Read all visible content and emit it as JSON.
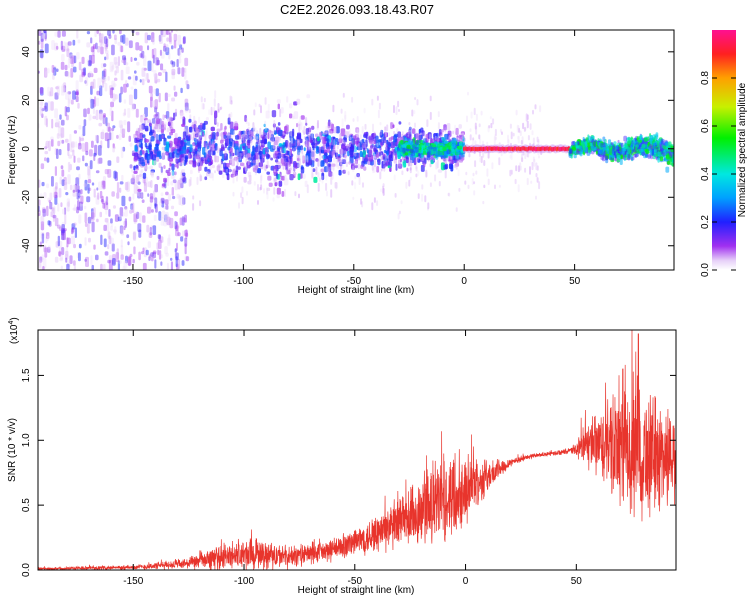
{
  "title": "C2E2.2026.093.18.43.R07",
  "chart_data": [
    {
      "type": "heatmap",
      "name": "spectrogram",
      "xlabel": "Height of straight line (km)",
      "ylabel": "Frequency (Hz)",
      "xlim": [
        -193,
        95
      ],
      "ylim": [
        -50,
        49
      ],
      "xticks": [
        -150,
        -100,
        -50,
        0,
        50
      ],
      "yticks": [
        -40,
        -20,
        0,
        20,
        40
      ],
      "colorbar": {
        "label": "Normalized spectral amplitude",
        "range": [
          0,
          1
        ],
        "ticks": [
          0.0,
          0.2,
          0.4,
          0.6,
          0.8
        ]
      },
      "description_bands": [
        {
          "x_range": [
            -193,
            -125
          ],
          "freq_spread": 49,
          "amplitude": [
            0.02,
            0.15
          ]
        },
        {
          "x_range": [
            -150,
            0
          ],
          "freq_spread": 20,
          "amplitude": [
            0.1,
            0.35
          ]
        },
        {
          "x_range": [
            0,
            48
          ],
          "freq_center": 0,
          "freq_spread": 1.5,
          "amplitude": [
            0.9,
            1.0
          ]
        },
        {
          "x_range": [
            48,
            95
          ],
          "freq_spread": 8,
          "amplitude": [
            0.25,
            0.6
          ]
        }
      ]
    },
    {
      "type": "line",
      "name": "snr",
      "xlabel": "Height of straight line (km)",
      "ylabel": "SNR (10 * v/v)",
      "yscale_label": "(x10",
      "yscale_exp": "4",
      "yscale_close": ")",
      "xlim": [
        -193,
        95
      ],
      "ylim": [
        0,
        1.85
      ],
      "xticks": [
        -150,
        -100,
        -50,
        0,
        50
      ],
      "yticks": [
        0.0,
        0.5,
        1.0,
        1.5
      ],
      "ytick_labels": [
        "0.0",
        "0.5",
        "1.0",
        "1.5"
      ],
      "color": "#e8342c",
      "envelope": [
        {
          "x": -193,
          "mean": 0.01,
          "amp": 0.01
        },
        {
          "x": -150,
          "mean": 0.02,
          "amp": 0.02
        },
        {
          "x": -125,
          "mean": 0.05,
          "amp": 0.05
        },
        {
          "x": -110,
          "mean": 0.1,
          "amp": 0.12
        },
        {
          "x": -95,
          "mean": 0.12,
          "amp": 0.15
        },
        {
          "x": -80,
          "mean": 0.1,
          "amp": 0.1
        },
        {
          "x": -60,
          "mean": 0.15,
          "amp": 0.1
        },
        {
          "x": -45,
          "mean": 0.25,
          "amp": 0.15
        },
        {
          "x": -30,
          "mean": 0.35,
          "amp": 0.25
        },
        {
          "x": -20,
          "mean": 0.45,
          "amp": 0.35
        },
        {
          "x": -10,
          "mean": 0.55,
          "amp": 0.4
        },
        {
          "x": 0,
          "mean": 0.62,
          "amp": 0.3
        },
        {
          "x": 10,
          "mean": 0.72,
          "amp": 0.15
        },
        {
          "x": 20,
          "mean": 0.83,
          "amp": 0.04
        },
        {
          "x": 30,
          "mean": 0.88,
          "amp": 0.02
        },
        {
          "x": 40,
          "mean": 0.9,
          "amp": 0.02
        },
        {
          "x": 48,
          "mean": 0.92,
          "amp": 0.03
        },
        {
          "x": 55,
          "mean": 0.96,
          "amp": 0.2
        },
        {
          "x": 65,
          "mean": 0.95,
          "amp": 0.45
        },
        {
          "x": 75,
          "mean": 0.9,
          "amp": 0.6
        },
        {
          "x": 85,
          "mean": 0.88,
          "amp": 0.55
        },
        {
          "x": 95,
          "mean": 0.88,
          "amp": 0.4
        }
      ],
      "peaks": [
        {
          "x": 78,
          "y": 1.82
        },
        {
          "x": 71,
          "y": 1.55
        }
      ]
    }
  ]
}
